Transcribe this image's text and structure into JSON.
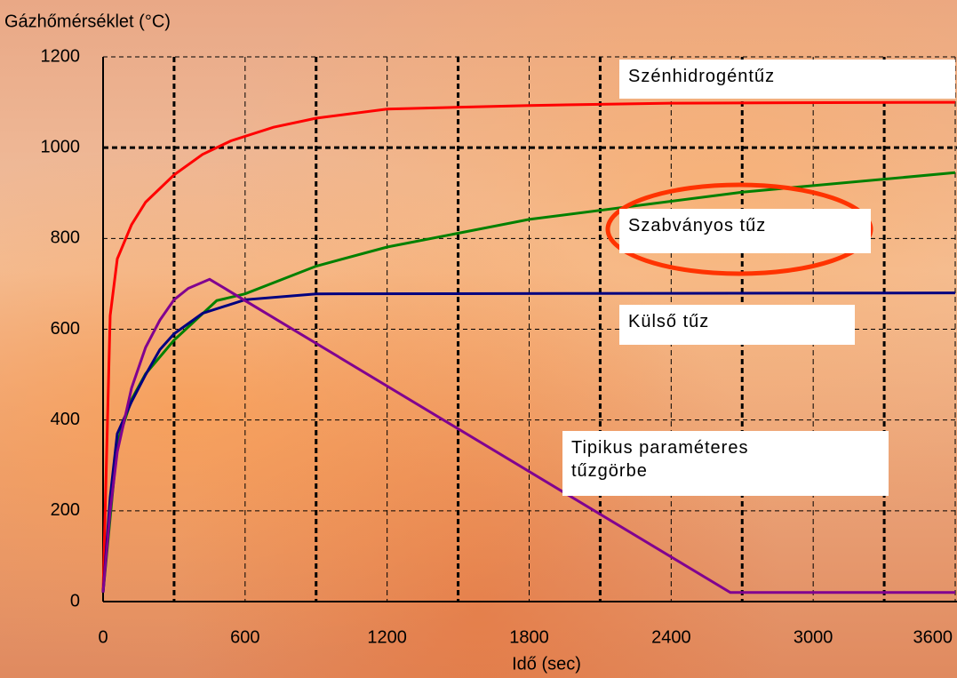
{
  "chart_data": {
    "type": "line",
    "y_label": "Gázhőmérséklet (°C)",
    "x_label": "Idő (sec)",
    "xlim": [
      0,
      3600
    ],
    "xticks": [
      0,
      600,
      1200,
      1800,
      2400,
      3000,
      3600
    ],
    "x_grid": [
      300,
      600,
      900,
      1200,
      1500,
      1800,
      2100,
      2400,
      2700,
      3000,
      3300,
      3600
    ],
    "ylim": [
      0,
      1200
    ],
    "yticks": [
      0,
      200,
      400,
      600,
      800,
      1000,
      1200
    ],
    "grid": true,
    "series": [
      {
        "name": "Szénhidrogéntűz",
        "color": "#ff0000",
        "x": [
          0,
          30,
          60,
          120,
          180,
          300,
          420,
          540,
          720,
          900,
          1200,
          1800,
          2400,
          3600
        ],
        "values": [
          20,
          630,
          755,
          830,
          880,
          940,
          985,
          1015,
          1045,
          1065,
          1085,
          1093,
          1098,
          1100
        ]
      },
      {
        "name": "Szabványos tűz",
        "color": "#008000",
        "x": [
          0,
          60,
          120,
          180,
          300,
          480,
          600,
          900,
          1200,
          1800,
          2700,
          3600
        ],
        "values": [
          20,
          349,
          445,
          502,
          576,
          663,
          678,
          739,
          781,
          842,
          902,
          945
        ]
      },
      {
        "name": "Külső tűz",
        "color": "#000080",
        "x": [
          0,
          30,
          60,
          120,
          180,
          240,
          300,
          420,
          600,
          900,
          3600
        ],
        "values": [
          20,
          230,
          370,
          440,
          500,
          555,
          590,
          635,
          665,
          678,
          680
        ]
      },
      {
        "name": "Tipikus paraméteres tűzgörbe",
        "color": "#800090",
        "x": [
          0,
          30,
          60,
          120,
          180,
          240,
          300,
          360,
          450,
          2650,
          3600
        ],
        "values": [
          20,
          200,
          330,
          470,
          560,
          620,
          665,
          690,
          710,
          20,
          20
        ]
      }
    ]
  }
}
